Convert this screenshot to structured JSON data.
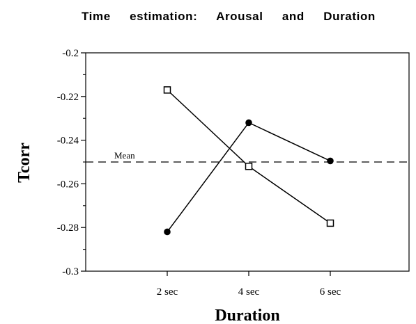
{
  "chart_data": {
    "type": "line",
    "title": "Time estimation: Arousal and Duration",
    "xlabel": "Duration",
    "ylabel": "Tcorr",
    "categories": [
      "2 sec",
      "4 sec",
      "6 sec"
    ],
    "ylim": [
      -0.3,
      -0.2
    ],
    "yticks": [
      "-0.2",
      "-0.22",
      "-0.24",
      "-0.26",
      "-0.28",
      "-0.3"
    ],
    "series": [
      {
        "marker": "open-square",
        "values": [
          -0.217,
          -0.252,
          -0.278
        ]
      },
      {
        "marker": "filled-circle",
        "values": [
          -0.282,
          -0.232,
          -0.2495
        ]
      }
    ],
    "reference_line": {
      "label": "Mean",
      "value": -0.25,
      "style": "dashed"
    },
    "grid": false,
    "colors": {
      "line": "#000000",
      "background": "#ffffff"
    }
  }
}
